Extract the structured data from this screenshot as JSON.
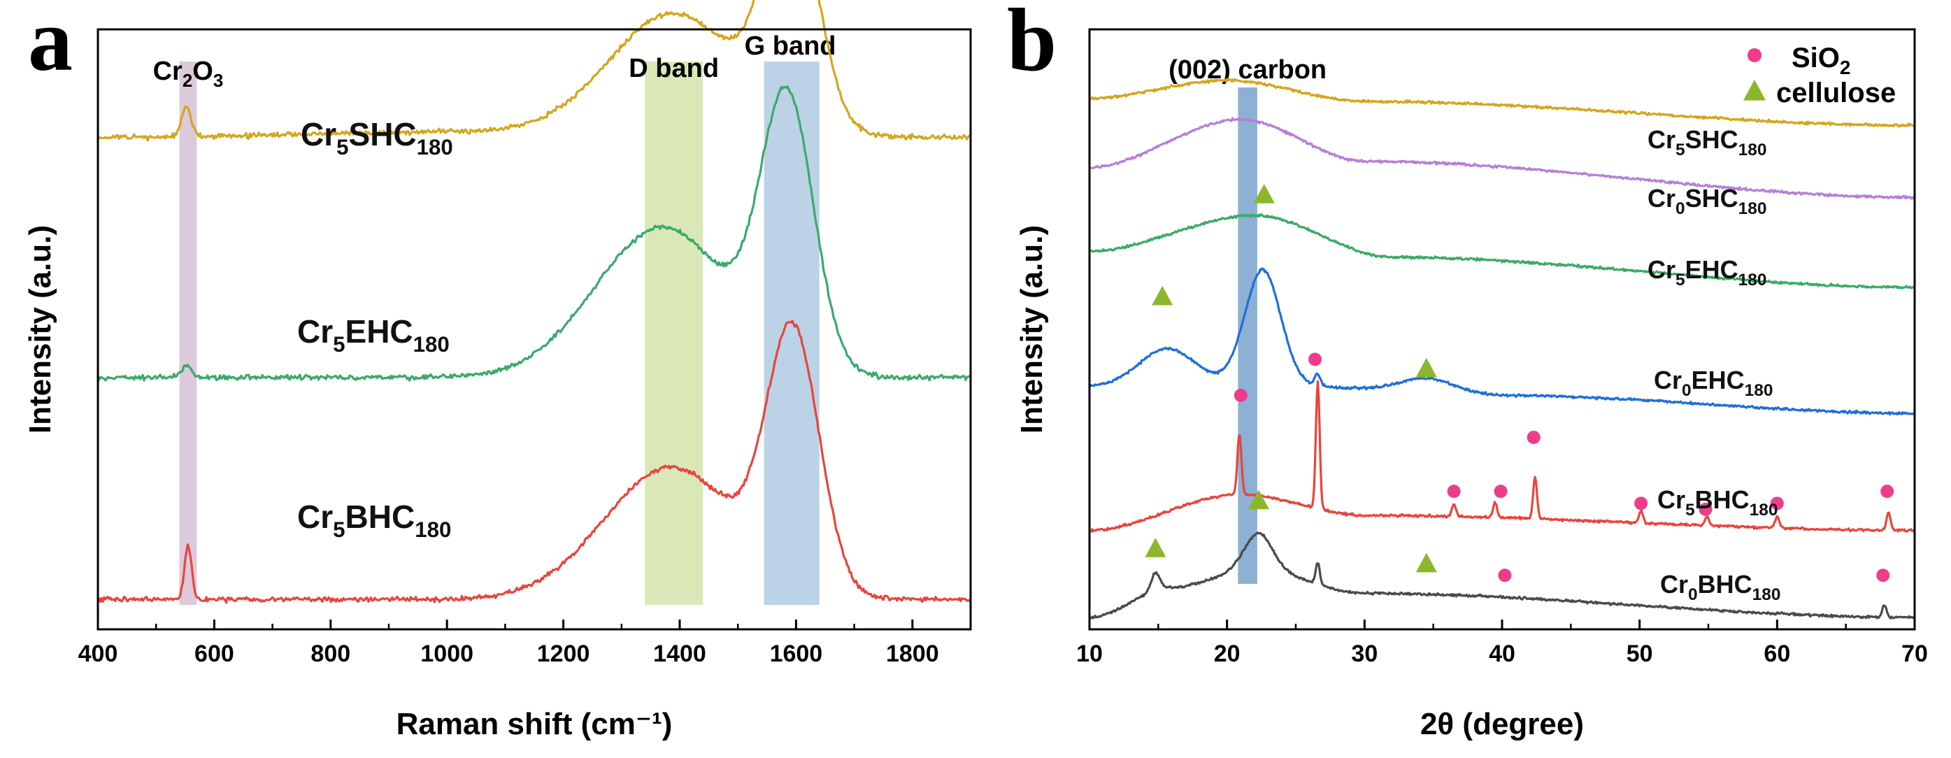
{
  "chart_data": [
    {
      "type": "line",
      "panel": "a",
      "xlabel": "Raman shift (cm⁻¹)",
      "ylabel": "Intensity (a.u.)",
      "xlim": [
        400,
        1900
      ],
      "xticks": [
        "400",
        "600",
        "800",
        "1000",
        "1200",
        "1400",
        "1600",
        "1800"
      ],
      "yticks": "none",
      "bands": [
        {
          "label_main": "Cr",
          "label_sub1": "2",
          "label_mid": "O",
          "label_sub2": "3",
          "label": "Cr2O3",
          "x_range": [
            540,
            570
          ],
          "color": "#d8c4d8"
        },
        {
          "label": "D band",
          "x_range": [
            1340,
            1440
          ],
          "color": "#d6e6b0"
        },
        {
          "label": "G band",
          "x_range": [
            1545,
            1640
          ],
          "color": "#b5cde3"
        }
      ],
      "series": [
        {
          "name": "Cr5SHC180",
          "label_main": "Cr",
          "label_sub1": "5",
          "label_mid": "SHC",
          "label_sub2": "180",
          "color": "#d4a61c",
          "offset": 0.82,
          "baseline": [
            [
              400,
              0.0
            ],
            [
              1100,
              0.01
            ],
            [
              1900,
              0.0
            ]
          ],
          "peaks": [
            {
              "center": 552,
              "height": 0.05,
              "width": 8
            },
            {
              "center": 1390,
              "height": 0.2,
              "width": 110
            },
            {
              "center": 1592,
              "height": 0.37,
              "width": 45
            }
          ]
        },
        {
          "name": "Cr5EHC180",
          "label_main": "Cr",
          "label_sub1": "5",
          "label_mid": "EHC",
          "label_sub2": "180",
          "color": "#3aaa6a",
          "offset": 0.42,
          "baseline": [
            [
              400,
              0.0
            ],
            [
              1100,
              0.0
            ],
            [
              1900,
              0.0
            ]
          ],
          "peaks": [
            {
              "center": 552,
              "height": 0.02,
              "width": 8
            },
            {
              "center": 1370,
              "height": 0.25,
              "width": 115
            },
            {
              "center": 1585,
              "height": 0.44,
              "width": 45
            }
          ]
        },
        {
          "name": "Cr5BHC180",
          "label_main": "Cr",
          "label_sub1": "5",
          "label_mid": "BHC",
          "label_sub2": "180",
          "color": "#e8453c",
          "offset": 0.05,
          "baseline": [
            [
              400,
              0.0
            ],
            [
              1100,
              0.0
            ],
            [
              1900,
              0.0
            ]
          ],
          "peaks": [
            {
              "center": 555,
              "height": 0.09,
              "width": 6
            },
            {
              "center": 1385,
              "height": 0.22,
              "width": 115
            },
            {
              "center": 1595,
              "height": 0.42,
              "width": 45
            }
          ]
        }
      ]
    },
    {
      "type": "line",
      "panel": "b",
      "xlabel": "2θ (degree)",
      "ylabel": "Intensity (a.u.)",
      "xlim": [
        10,
        70
      ],
      "xticks": [
        "10",
        "20",
        "30",
        "40",
        "50",
        "60",
        "70"
      ],
      "yticks": "none",
      "bands": [
        {
          "label": "(002) carbon",
          "x_range": [
            20.8,
            22.2
          ],
          "color": "#7fa8d0"
        }
      ],
      "legend": [
        {
          "label_main": "SiO",
          "label_sub": "2",
          "label": "SiO2",
          "marker": "circle",
          "color": "#ee3c8a"
        },
        {
          "label": "cellulose",
          "marker": "triangle",
          "color": "#8bb82b"
        }
      ],
      "series": [
        {
          "name": "Cr5SHC180",
          "label_main": "Cr",
          "label_sub1": "5",
          "label_mid": "SHC",
          "label_sub2": "180",
          "color": "#d4a61c",
          "offset": 0.84,
          "baseline": [
            [
              10,
              0.045
            ],
            [
              20,
              0.075
            ],
            [
              30,
              0.04
            ],
            [
              70,
              0.0
            ]
          ],
          "peaks": []
        },
        {
          "name": "Cr0SHC180",
          "label_main": "Cr",
          "label_sub1": "0",
          "label_mid": "SHC",
          "label_sub2": "180",
          "color": "#b57fd8",
          "offset": 0.72,
          "baseline": [
            [
              10,
              0.05
            ],
            [
              21,
              0.13
            ],
            [
              30,
              0.06
            ],
            [
              70,
              0.0
            ]
          ],
          "peaks": []
        },
        {
          "name": "Cr5EHC180",
          "label_main": "Cr",
          "label_sub1": "5",
          "label_mid": "EHC",
          "label_sub2": "180",
          "color": "#3aaa6a",
          "offset": 0.57,
          "baseline": [
            [
              10,
              0.06
            ],
            [
              22,
              0.12
            ],
            [
              32,
              0.05
            ],
            [
              70,
              0.0
            ]
          ],
          "peaks": []
        },
        {
          "name": "Cr0EHC180",
          "label_main": "Cr",
          "label_sub1": "0",
          "label_mid": "EHC",
          "label_sub2": "180",
          "color": "#1f6fd6",
          "offset": 0.36,
          "baseline": [
            [
              10,
              0.045
            ],
            [
              20,
              0.05
            ],
            [
              40,
              0.03
            ],
            [
              70,
              0.0
            ]
          ],
          "peaks": [
            {
              "center": 15.6,
              "height": 0.06,
              "width": 2.0
            },
            {
              "center": 22.6,
              "height": 0.19,
              "width": 1.3
            },
            {
              "center": 34.5,
              "height": 0.025,
              "width": 2.0
            },
            {
              "center": 26.6,
              "height": 0.02,
              "width": 0.2
            }
          ]
        },
        {
          "name": "Cr5BHC180",
          "label_main": "Cr",
          "label_sub1": "5",
          "label_mid": "BHC",
          "label_sub2": "180",
          "color": "#e8453c",
          "offset": 0.165,
          "baseline": [
            [
              10,
              0.0
            ],
            [
              21,
              0.06
            ],
            [
              30,
              0.025
            ],
            [
              70,
              0.0
            ]
          ],
          "peaks": [
            {
              "center": 20.9,
              "height": 0.1,
              "width": 0.15
            },
            {
              "center": 26.6,
              "height": 0.21,
              "width": 0.14
            },
            {
              "center": 36.5,
              "height": 0.02,
              "width": 0.15
            },
            {
              "center": 39.5,
              "height": 0.025,
              "width": 0.15
            },
            {
              "center": 42.4,
              "height": 0.07,
              "width": 0.14
            },
            {
              "center": 50.1,
              "height": 0.02,
              "width": 0.15
            },
            {
              "center": 54.9,
              "height": 0.015,
              "width": 0.15
            },
            {
              "center": 60.0,
              "height": 0.02,
              "width": 0.15
            },
            {
              "center": 68.1,
              "height": 0.03,
              "width": 0.15
            }
          ]
        },
        {
          "name": "Cr0BHC180",
          "label_main": "Cr",
          "label_sub1": "0",
          "label_mid": "BHC",
          "label_sub2": "180",
          "color": "#4a4a4a",
          "offset": 0.02,
          "baseline": [
            [
              10,
              0.0
            ],
            [
              16,
              0.05
            ],
            [
              22,
              0.08
            ],
            [
              30,
              0.04
            ],
            [
              70,
              0.0
            ]
          ],
          "peaks": [
            {
              "center": 14.8,
              "height": 0.03,
              "width": 0.3
            },
            {
              "center": 22.3,
              "height": 0.06,
              "width": 1.0
            },
            {
              "center": 26.6,
              "height": 0.035,
              "width": 0.15
            },
            {
              "center": 67.8,
              "height": 0.02,
              "width": 0.15
            }
          ]
        }
      ],
      "markers": [
        {
          "type": "triangle",
          "x": 15.3,
          "series": "Cr5EHC180-stack",
          "y": 0.555
        },
        {
          "type": "triangle",
          "x": 22.7,
          "series": "Cr5EHC180",
          "y": 0.725
        },
        {
          "type": "triangle",
          "x": 34.5,
          "y": 0.435
        },
        {
          "type": "circle",
          "x": 21.0,
          "y": 0.39
        },
        {
          "type": "circle",
          "x": 26.4,
          "y": 0.45
        },
        {
          "type": "circle",
          "x": 36.5,
          "y": 0.23
        },
        {
          "type": "circle",
          "x": 39.9,
          "y": 0.23
        },
        {
          "type": "circle",
          "x": 42.3,
          "y": 0.32
        },
        {
          "type": "circle",
          "x": 50.1,
          "y": 0.21
        },
        {
          "type": "circle",
          "x": 54.8,
          "y": 0.2
        },
        {
          "type": "circle",
          "x": 60.0,
          "y": 0.21
        },
        {
          "type": "circle",
          "x": 68.0,
          "y": 0.23
        },
        {
          "type": "triangle",
          "x": 14.8,
          "y": 0.135
        },
        {
          "type": "triangle",
          "x": 22.3,
          "y": 0.215
        },
        {
          "type": "triangle",
          "x": 34.5,
          "y": 0.11
        },
        {
          "type": "circle",
          "x": 40.2,
          "y": 0.09
        },
        {
          "type": "circle",
          "x": 67.7,
          "y": 0.09
        }
      ]
    }
  ]
}
